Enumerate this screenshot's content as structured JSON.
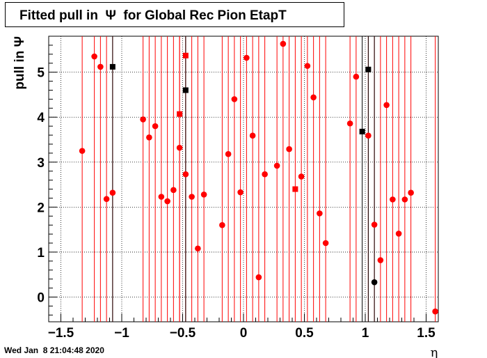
{
  "title": "Fitted pull in  Ψ  for Global Rec Pion EtapT",
  "footer": {
    "datetime": "Wed Jan  8 21:04:48 2020"
  },
  "chart_data": {
    "type": "scatter",
    "title": "Fitted pull in  Ψ  for Global Rec Pion EtapT",
    "xlabel": "η",
    "ylabel": "pull in  Ψ",
    "xlim": [
      -1.6,
      1.6
    ],
    "ylim": [
      -0.55,
      5.8
    ],
    "grid": true,
    "x_ticks": [
      "−1.5",
      "−1",
      "−0.5",
      "0",
      "0.5",
      "1",
      "1.5"
    ],
    "x_tick_values": [
      -1.5,
      -1,
      -0.5,
      0,
      0.5,
      1,
      1.5
    ],
    "y_ticks": [
      "0",
      "1",
      "2",
      "3",
      "4",
      "5"
    ],
    "y_tick_values": [
      0,
      1,
      2,
      3,
      4,
      5
    ],
    "colors": {
      "red": "#ff0000",
      "black": "#000000"
    },
    "series": [
      {
        "marker": "circle",
        "color": "#ff0000",
        "points": [
          {
            "x": -1.325,
            "y": 3.25
          },
          {
            "x": -1.225,
            "y": 5.35
          },
          {
            "x": -1.175,
            "y": 5.12
          },
          {
            "x": -1.125,
            "y": 2.18
          },
          {
            "x": -1.075,
            "y": 2.32
          },
          {
            "x": -0.825,
            "y": 3.95
          },
          {
            "x": -0.775,
            "y": 3.55
          },
          {
            "x": -0.725,
            "y": 3.8
          },
          {
            "x": -0.675,
            "y": 2.23
          },
          {
            "x": -0.625,
            "y": 2.13
          },
          {
            "x": -0.575,
            "y": 2.38
          },
          {
            "x": -0.525,
            "y": 3.32
          },
          {
            "x": -0.475,
            "y": 2.73
          },
          {
            "x": -0.425,
            "y": 2.23
          },
          {
            "x": -0.375,
            "y": 1.08
          },
          {
            "x": -0.325,
            "y": 2.28
          },
          {
            "x": -0.175,
            "y": 1.6
          },
          {
            "x": -0.125,
            "y": 3.18
          },
          {
            "x": -0.075,
            "y": 4.4
          },
          {
            "x": -0.025,
            "y": 2.33
          },
          {
            "x": 0.025,
            "y": 5.32
          },
          {
            "x": 0.075,
            "y": 3.59
          },
          {
            "x": 0.125,
            "y": 0.44
          },
          {
            "x": 0.175,
            "y": 2.73
          },
          {
            "x": 0.275,
            "y": 2.92
          },
          {
            "x": 0.325,
            "y": 5.63
          },
          {
            "x": 0.375,
            "y": 3.29
          },
          {
            "x": 0.475,
            "y": 2.68
          },
          {
            "x": 0.525,
            "y": 5.14
          },
          {
            "x": 0.575,
            "y": 4.44
          },
          {
            "x": 0.625,
            "y": 1.86
          },
          {
            "x": 0.675,
            "y": 1.2
          },
          {
            "x": 0.875,
            "y": 3.86
          },
          {
            "x": 0.925,
            "y": 4.9
          },
          {
            "x": 1.025,
            "y": 3.59
          },
          {
            "x": 1.075,
            "y": 1.61
          },
          {
            "x": 1.125,
            "y": 0.82
          },
          {
            "x": 1.175,
            "y": 4.27
          },
          {
            "x": 1.225,
            "y": 2.17
          },
          {
            "x": 1.275,
            "y": 1.41
          },
          {
            "x": 1.325,
            "y": 2.17
          },
          {
            "x": 1.375,
            "y": 2.32
          },
          {
            "x": 1.575,
            "y": -0.32
          }
        ]
      },
      {
        "marker": "square",
        "color": "#ff0000",
        "points": [
          {
            "x": -0.525,
            "y": 4.07
          },
          {
            "x": -0.475,
            "y": 5.37
          },
          {
            "x": 0.425,
            "y": 2.4
          }
        ]
      },
      {
        "marker": "square",
        "color": "#000000",
        "points": [
          {
            "x": -1.075,
            "y": 5.12
          },
          {
            "x": -0.475,
            "y": 4.6
          },
          {
            "x": 0.975,
            "y": 3.68
          },
          {
            "x": 1.025,
            "y": 5.06
          }
        ]
      },
      {
        "marker": "circle",
        "color": "#000000",
        "points": [
          {
            "x": 1.075,
            "y": 0.33
          }
        ]
      }
    ]
  }
}
